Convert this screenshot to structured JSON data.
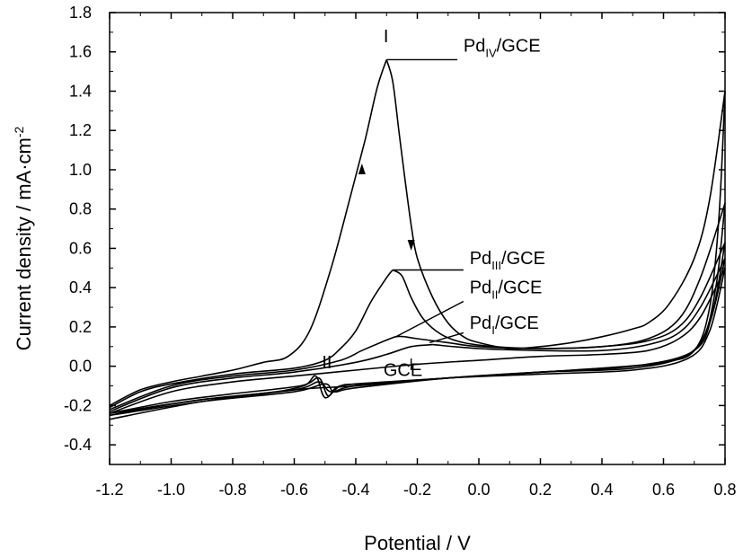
{
  "chart_data": {
    "type": "line",
    "xlabel": "Potential / V",
    "ylabel": "Current density / mA·cm",
    "ylabel_sup": "-2",
    "xlim": [
      -1.2,
      0.8
    ],
    "ylim": [
      -0.5,
      1.8
    ],
    "grid": false,
    "x_ticks": [
      "-1.2",
      "-1.0",
      "-0.8",
      "-0.6",
      "-0.4",
      "-0.2",
      "0.0",
      "0.2",
      "0.4",
      "0.6",
      "0.8"
    ],
    "y_ticks": [
      "-0.4",
      "-0.2",
      "0.0",
      "0.2",
      "0.4",
      "0.6",
      "0.8",
      "1.0",
      "1.2",
      "1.4",
      "1.6",
      "1.8"
    ],
    "series": [
      {
        "name": "Pd IV/GCE",
        "forward": [
          [
            -1.2,
            -0.2
          ],
          [
            -1.1,
            -0.12
          ],
          [
            -1.0,
            -0.08
          ],
          [
            -0.9,
            -0.05
          ],
          [
            -0.8,
            -0.02
          ],
          [
            -0.7,
            0.02
          ],
          [
            -0.62,
            0.05
          ],
          [
            -0.55,
            0.18
          ],
          [
            -0.48,
            0.5
          ],
          [
            -0.42,
            0.85
          ],
          [
            -0.37,
            1.15
          ],
          [
            -0.33,
            1.42
          ],
          [
            -0.3,
            1.56
          ]
        ],
        "reverse": [
          [
            -0.3,
            1.56
          ],
          [
            -0.28,
            1.45
          ],
          [
            -0.26,
            1.2
          ],
          [
            -0.24,
            0.95
          ],
          [
            -0.22,
            0.72
          ],
          [
            -0.2,
            0.55
          ],
          [
            -0.15,
            0.35
          ],
          [
            -0.1,
            0.22
          ],
          [
            -0.05,
            0.15
          ],
          [
            0.0,
            0.12
          ],
          [
            0.1,
            0.09
          ],
          [
            0.2,
            0.1
          ],
          [
            0.3,
            0.12
          ],
          [
            0.4,
            0.15
          ],
          [
            0.5,
            0.19
          ],
          [
            0.55,
            0.22
          ],
          [
            0.62,
            0.32
          ],
          [
            0.7,
            0.55
          ],
          [
            0.75,
            0.85
          ],
          [
            0.8,
            1.4
          ]
        ],
        "cathodic": [
          [
            0.8,
            1.4
          ],
          [
            0.78,
            0.75
          ],
          [
            0.75,
            0.3
          ],
          [
            0.7,
            0.08
          ],
          [
            0.6,
            0.02
          ],
          [
            0.4,
            -0.01
          ],
          [
            0.2,
            -0.03
          ],
          [
            0.0,
            -0.05
          ],
          [
            -0.2,
            -0.07
          ],
          [
            -0.38,
            -0.09
          ],
          [
            -0.45,
            -0.1
          ],
          [
            -0.5,
            -0.16
          ],
          [
            -0.53,
            -0.05
          ],
          [
            -0.57,
            -0.1
          ],
          [
            -0.7,
            -0.14
          ],
          [
            -0.9,
            -0.17
          ],
          [
            -1.1,
            -0.22
          ],
          [
            -1.2,
            -0.25
          ]
        ]
      },
      {
        "name": "Pd III/GCE",
        "forward": [
          [
            -1.2,
            -0.21
          ],
          [
            -1.1,
            -0.13
          ],
          [
            -1.0,
            -0.09
          ],
          [
            -0.8,
            -0.04
          ],
          [
            -0.6,
            -0.01
          ],
          [
            -0.5,
            0.03
          ],
          [
            -0.45,
            0.09
          ],
          [
            -0.4,
            0.18
          ],
          [
            -0.35,
            0.33
          ],
          [
            -0.3,
            0.45
          ],
          [
            -0.28,
            0.49
          ]
        ],
        "reverse": [
          [
            -0.28,
            0.49
          ],
          [
            -0.25,
            0.46
          ],
          [
            -0.22,
            0.35
          ],
          [
            -0.18,
            0.24
          ],
          [
            -0.12,
            0.16
          ],
          [
            -0.05,
            0.12
          ],
          [
            0.05,
            0.1
          ],
          [
            0.2,
            0.09
          ],
          [
            0.4,
            0.1
          ],
          [
            0.55,
            0.14
          ],
          [
            0.65,
            0.24
          ],
          [
            0.72,
            0.45
          ],
          [
            0.8,
            0.83
          ]
        ],
        "cathodic": [
          [
            0.8,
            0.83
          ],
          [
            0.77,
            0.4
          ],
          [
            0.72,
            0.12
          ],
          [
            0.6,
            0.02
          ],
          [
            0.3,
            -0.02
          ],
          [
            0.0,
            -0.05
          ],
          [
            -0.3,
            -0.08
          ],
          [
            -0.45,
            -0.1
          ],
          [
            -0.49,
            -0.15
          ],
          [
            -0.52,
            -0.06
          ],
          [
            -0.58,
            -0.1
          ],
          [
            -0.8,
            -0.14
          ],
          [
            -1.0,
            -0.18
          ],
          [
            -1.2,
            -0.24
          ]
        ]
      },
      {
        "name": "Pd II/GCE",
        "forward": [
          [
            -1.2,
            -0.22
          ],
          [
            -1.0,
            -0.1
          ],
          [
            -0.8,
            -0.05
          ],
          [
            -0.6,
            -0.02
          ],
          [
            -0.45,
            0.03
          ],
          [
            -0.38,
            0.08
          ],
          [
            -0.32,
            0.12
          ],
          [
            -0.27,
            0.15
          ],
          [
            -0.24,
            0.15
          ]
        ],
        "reverse": [
          [
            -0.24,
            0.15
          ],
          [
            -0.2,
            0.14
          ],
          [
            -0.1,
            0.12
          ],
          [
            0.0,
            0.1
          ],
          [
            0.2,
            0.09
          ],
          [
            0.4,
            0.1
          ],
          [
            0.55,
            0.13
          ],
          [
            0.65,
            0.2
          ],
          [
            0.72,
            0.35
          ],
          [
            0.8,
            0.63
          ]
        ],
        "cathodic": [
          [
            0.8,
            0.63
          ],
          [
            0.76,
            0.28
          ],
          [
            0.7,
            0.08
          ],
          [
            0.5,
            0.0
          ],
          [
            0.2,
            -0.03
          ],
          [
            -0.1,
            -0.06
          ],
          [
            -0.4,
            -0.1
          ],
          [
            -0.48,
            -0.13
          ],
          [
            -0.52,
            -0.08
          ],
          [
            -0.6,
            -0.12
          ],
          [
            -0.9,
            -0.17
          ],
          [
            -1.2,
            -0.24
          ]
        ]
      },
      {
        "name": "Pd I/GCE",
        "forward": [
          [
            -1.2,
            -0.23
          ],
          [
            -1.0,
            -0.11
          ],
          [
            -0.8,
            -0.06
          ],
          [
            -0.6,
            -0.03
          ],
          [
            -0.4,
            0.02
          ],
          [
            -0.3,
            0.06
          ],
          [
            -0.22,
            0.1
          ],
          [
            -0.15,
            0.11
          ]
        ],
        "reverse": [
          [
            -0.15,
            0.11
          ],
          [
            0.0,
            0.09
          ],
          [
            0.2,
            0.08
          ],
          [
            0.4,
            0.08
          ],
          [
            0.55,
            0.11
          ],
          [
            0.65,
            0.17
          ],
          [
            0.72,
            0.3
          ],
          [
            0.8,
            0.55
          ]
        ],
        "cathodic": [
          [
            0.8,
            0.55
          ],
          [
            0.75,
            0.22
          ],
          [
            0.68,
            0.06
          ],
          [
            0.5,
            -0.01
          ],
          [
            0.2,
            -0.03
          ],
          [
            -0.1,
            -0.06
          ],
          [
            -0.4,
            -0.11
          ],
          [
            -0.47,
            -0.13
          ],
          [
            -0.5,
            -0.09
          ],
          [
            -0.6,
            -0.13
          ],
          [
            -0.9,
            -0.18
          ],
          [
            -1.2,
            -0.25
          ]
        ]
      },
      {
        "name": "GCE",
        "forward": [
          [
            -1.2,
            -0.24
          ],
          [
            -1.0,
            -0.13
          ],
          [
            -0.8,
            -0.08
          ],
          [
            -0.6,
            -0.05
          ],
          [
            -0.4,
            -0.02
          ],
          [
            -0.2,
            0.01
          ],
          [
            0.0,
            0.03
          ],
          [
            0.2,
            0.05
          ],
          [
            0.4,
            0.06
          ],
          [
            0.55,
            0.08
          ],
          [
            0.65,
            0.14
          ],
          [
            0.72,
            0.25
          ],
          [
            0.8,
            0.5
          ]
        ],
        "reverse": [
          [
            0.8,
            0.5
          ],
          [
            0.75,
            0.18
          ],
          [
            0.68,
            0.04
          ],
          [
            0.5,
            -0.02
          ],
          [
            0.2,
            -0.04
          ],
          [
            -0.1,
            -0.06
          ],
          [
            -0.4,
            -0.1
          ],
          [
            -0.6,
            -0.12
          ],
          [
            -0.9,
            -0.18
          ],
          [
            -1.2,
            -0.27
          ]
        ]
      }
    ],
    "annotations": [
      {
        "label": "I",
        "x": -0.31,
        "y": 1.65
      },
      {
        "label": "II",
        "x": -0.51,
        "y": -0.01
      },
      {
        "label": "Pd",
        "sub": "IV",
        "suffix": "/GCE",
        "x": -0.05,
        "y": 1.6,
        "leader_from": [
          -0.3,
          1.56
        ],
        "leader_to": [
          -0.07,
          1.56
        ]
      },
      {
        "label": "Pd",
        "sub": "III",
        "suffix": "/GCE",
        "x": -0.03,
        "y": 0.52,
        "leader_from": [
          -0.28,
          0.49
        ],
        "leader_to": [
          -0.05,
          0.49
        ]
      },
      {
        "label": "Pd",
        "sub": "II",
        "suffix": "/GCE",
        "x": -0.03,
        "y": 0.37,
        "leader_from": [
          -0.27,
          0.15
        ],
        "leader_to": [
          -0.05,
          0.33
        ]
      },
      {
        "label": "Pd",
        "sub": "I",
        "suffix": "/GCE",
        "x": -0.03,
        "y": 0.19,
        "leader_from": [
          -0.16,
          0.12
        ],
        "leader_to": [
          -0.05,
          0.17
        ]
      },
      {
        "label": "GCE",
        "x": -0.31,
        "y": -0.05,
        "leader_from": [
          -0.22,
          -0.02
        ],
        "leader_to": [
          -0.22,
          0.04
        ]
      }
    ],
    "arrows": [
      {
        "x": -0.38,
        "y": 1.0,
        "dir": "up"
      },
      {
        "x": -0.22,
        "y": 0.62,
        "dir": "down"
      }
    ]
  }
}
